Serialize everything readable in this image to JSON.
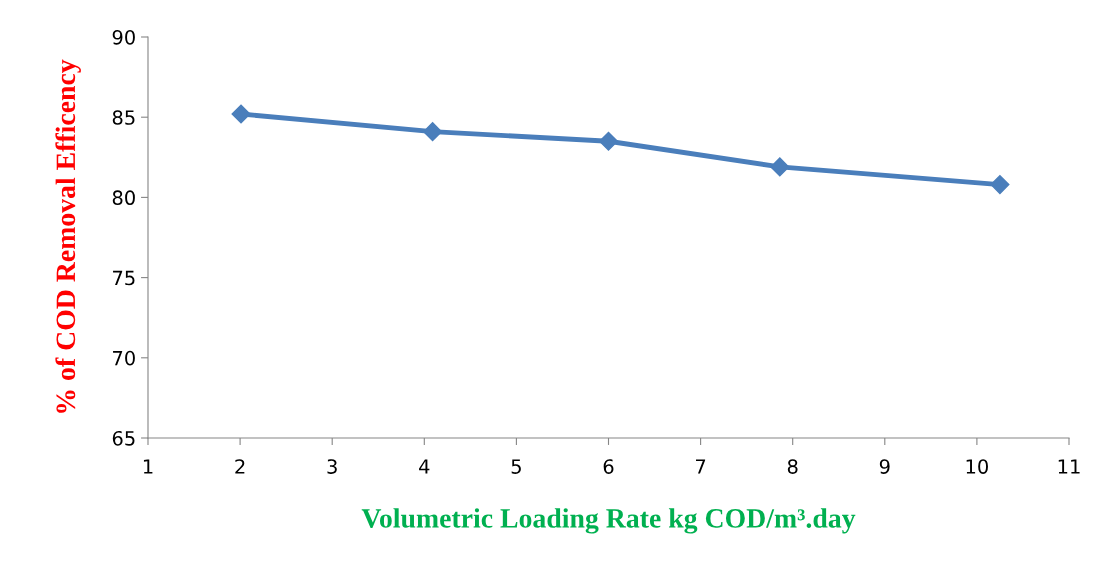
{
  "chart_data": {
    "type": "line",
    "x": [
      2.01,
      4.09,
      6.0,
      7.86,
      10.25
    ],
    "series": [
      {
        "color": "#4a7ebb",
        "values": [
          85.2,
          84.1,
          83.5,
          81.9,
          80.8
        ]
      }
    ],
    "xlabel": "Volumetric Loading Rate kg COD/m³.day",
    "ylabel": "% of COD Removal Efficency",
    "xlim": [
      1,
      11
    ],
    "xticks": [
      1,
      2,
      3,
      4,
      5,
      6,
      7,
      8,
      9,
      10,
      11
    ],
    "ylim": [
      65,
      90
    ],
    "yticks": [
      65,
      70,
      75,
      80,
      85,
      90
    ],
    "marker": "diamond",
    "line_style": "solid",
    "grid": false,
    "legend": false
  }
}
